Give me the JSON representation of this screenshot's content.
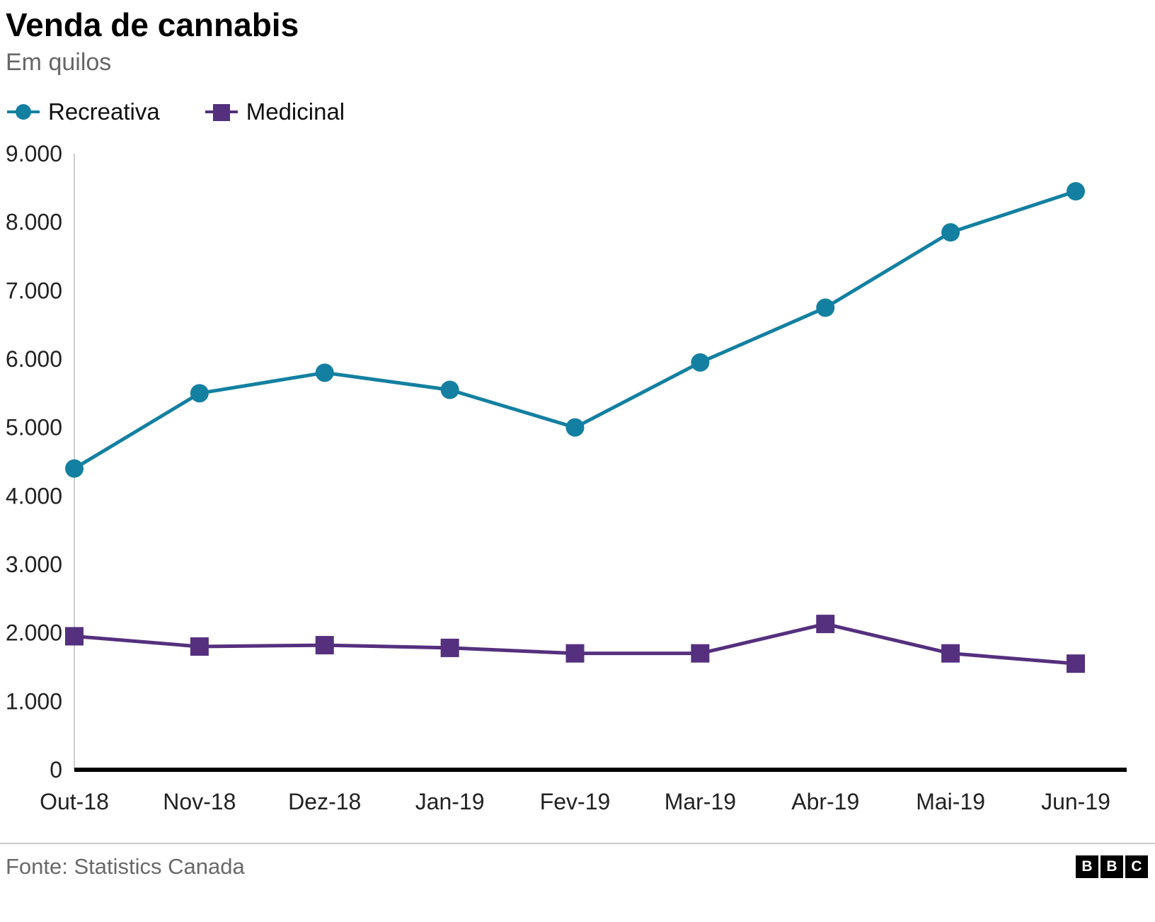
{
  "title": "Venda de cannabis",
  "subtitle": "Em quilos",
  "legend": [
    {
      "label": "Recreativa",
      "color": "#1380A1",
      "marker": "circle"
    },
    {
      "label": "Medicinal",
      "color": "#55307E",
      "marker": "square"
    }
  ],
  "footer": {
    "source": "Fonte: Statistics Canada",
    "logo": [
      "B",
      "B",
      "C"
    ]
  },
  "colors": {
    "recreativa": "#1380A1",
    "medicinal": "#55307E",
    "axis": "#000000",
    "y_axis_line": "#cccccc",
    "subtitle_gray": "#666666"
  },
  "chart_data": {
    "type": "line",
    "categories": [
      "Out-18",
      "Nov-18",
      "Dez-18",
      "Jan-19",
      "Fev-19",
      "Mar-19",
      "Abr-19",
      "Mai-19",
      "Jun-19"
    ],
    "series": [
      {
        "name": "Recreativa",
        "color": "#1380A1",
        "marker": "circle",
        "values": [
          4400,
          5500,
          5800,
          5550,
          5000,
          5950,
          6750,
          7850,
          8450
        ]
      },
      {
        "name": "Medicinal",
        "color": "#55307E",
        "marker": "square",
        "values": [
          1950,
          1800,
          1820,
          1780,
          1700,
          1700,
          2130,
          1700,
          1550
        ]
      }
    ],
    "title": "Venda de cannabis",
    "xlabel": "",
    "ylabel": "",
    "ylim": [
      0,
      9000
    ],
    "ytick_step": 1000,
    "ytick_labels": [
      "0",
      "1.000",
      "2.000",
      "3.000",
      "4.000",
      "5.000",
      "6.000",
      "7.000",
      "8.000",
      "9.000"
    ],
    "grid": false,
    "legend_position": "top-left"
  }
}
